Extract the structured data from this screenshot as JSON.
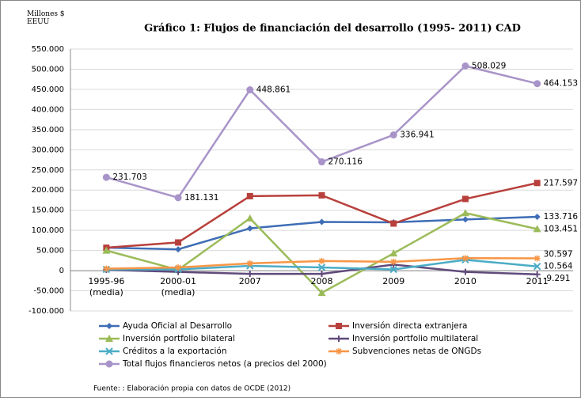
{
  "chart_data": {
    "type": "line",
    "title": "Gráfico 1:  Flujos de financiación del desarrollo (1995- 2011) CAD",
    "y_label": "Millones $\nEEUU",
    "source": "Fuente: : Elaboración propia con datos de OCDE (2012)",
    "categories": [
      "1995-96\n(media)",
      "2000-01\n(media)",
      "2007",
      "2008",
      "2009",
      "2010",
      "2011"
    ],
    "ylim": [
      -100000,
      550000
    ],
    "yticks": [
      {
        "value": -100000,
        "label": "-100.000"
      },
      {
        "value": -50000,
        "label": "-50.000"
      },
      0,
      {
        "value": 50000,
        "label": "50.000"
      },
      {
        "value": 100000,
        "label": "100.000"
      },
      {
        "value": 150000,
        "label": "150.000"
      },
      {
        "value": 200000,
        "label": "200.000"
      },
      {
        "value": 250000,
        "label": "250.000"
      },
      {
        "value": 300000,
        "label": "300.000"
      },
      {
        "value": 350000,
        "label": "350.000"
      },
      {
        "value": 400000,
        "label": "400.000"
      },
      {
        "value": 450000,
        "label": "450.000"
      },
      {
        "value": 500000,
        "label": "500.000"
      },
      {
        "value": 550000,
        "label": "550.000"
      }
    ],
    "grid": true,
    "legend": "bottom",
    "series": [
      {
        "name": "Ayuda Oficial al Desarrollo",
        "color": "#3e6db5",
        "marker": "diamond",
        "values": [
          57000,
          53000,
          105000,
          121000,
          120000,
          127000,
          133716
        ],
        "value_labels": [
          null,
          null,
          null,
          null,
          null,
          null,
          "133.716"
        ]
      },
      {
        "name": "Inversión directa extranjera",
        "color": "#b8403c",
        "marker": "square",
        "values": [
          57000,
          70000,
          185000,
          187000,
          117000,
          178000,
          217597
        ],
        "value_labels": [
          null,
          null,
          null,
          null,
          null,
          null,
          "217.597"
        ]
      },
      {
        "name": "Inversión portfolio bilateral",
        "color": "#9bbb59",
        "marker": "triangle",
        "values": [
          50000,
          2000,
          130000,
          -55000,
          43000,
          143000,
          103451
        ],
        "value_labels": [
          null,
          null,
          null,
          null,
          null,
          null,
          "103.451"
        ]
      },
      {
        "name": "Inversión portfolio multilateral",
        "color": "#604a7b",
        "marker": "plus",
        "values": [
          2000,
          -3000,
          -8000,
          -8000,
          15000,
          -3000,
          -9291
        ],
        "value_labels": [
          null,
          null,
          null,
          null,
          null,
          null,
          "-9.291"
        ]
      },
      {
        "name": "Créditos a la exportación",
        "color": "#4bacc6",
        "marker": "x",
        "values": [
          3000,
          3000,
          12000,
          8000,
          3000,
          27000,
          10564
        ],
        "value_labels": [
          null,
          null,
          null,
          null,
          null,
          null,
          "10.564"
        ]
      },
      {
        "name": "Subvenciones netas de ONGDs",
        "color": "#f79646",
        "marker": "star",
        "values": [
          5000,
          8000,
          18000,
          24000,
          22000,
          31000,
          30597
        ],
        "value_labels": [
          null,
          null,
          null,
          null,
          null,
          null,
          "30.597"
        ]
      },
      {
        "name": "Total flujos financieros netos (a precios del 2000)",
        "color": "#a894c8",
        "marker": "circle",
        "values": [
          231703,
          181131,
          448861,
          270116,
          336941,
          508029,
          464153
        ],
        "value_labels": [
          "231.703",
          "181.131",
          "448.861",
          "270.116",
          "336.941",
          "508.029",
          "464.153"
        ]
      }
    ]
  }
}
